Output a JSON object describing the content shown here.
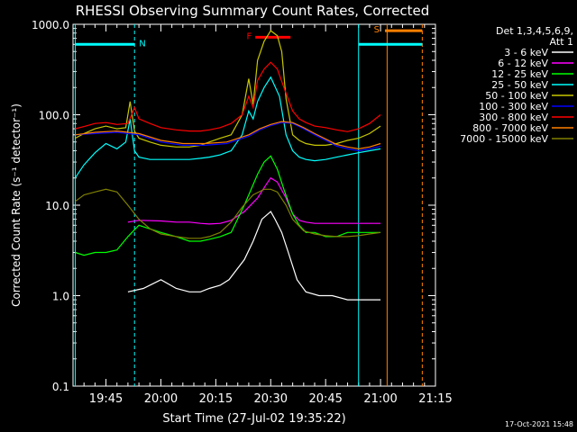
{
  "chart_data": {
    "type": "line",
    "title": "RHESSI Observing Summary Count Rates, Corrected",
    "xlabel": "Start Time (27-Jul-02 19:35:22)",
    "ylabel": "Corrected Count Rate (s⁻¹ detector⁻¹)",
    "yscale": "log",
    "ylim": [
      0.1,
      1000
    ],
    "xlim_minutes": [
      19.6,
      21.25
    ],
    "x_ticks": [
      "19:45",
      "20:00",
      "20:15",
      "20:30",
      "20:45",
      "21:00",
      "21:15"
    ],
    "x_tick_minutes": [
      19.75,
      20.0,
      20.25,
      20.5,
      20.75,
      21.0,
      21.25
    ],
    "y_ticks": [
      "0.1",
      "1.0",
      "10.0",
      "100.0",
      "1000.0"
    ],
    "y_tick_values": [
      0.1,
      1,
      10,
      100,
      1000
    ],
    "legend": {
      "position": "top-right",
      "header": [
        "Det 1,3,4,5,6,9,",
        "Att 1"
      ]
    },
    "timestamp": "17-Oct-2021 15:48",
    "annotations": [
      {
        "label": "N",
        "color": "#00ffff"
      },
      {
        "label": "F",
        "color": "#ff0000"
      },
      {
        "label": "S",
        "color": "#ff8000"
      }
    ],
    "series": [
      {
        "name": "3 - 6 keV",
        "color": "#ffffff",
        "x": [
          19.85,
          19.92,
          20.0,
          20.07,
          20.13,
          20.18,
          20.22,
          20.27,
          20.31,
          20.38,
          20.42,
          20.46,
          20.5,
          20.52,
          20.55,
          20.58,
          20.62,
          20.66,
          20.72,
          20.78,
          20.85,
          20.92,
          21.0
        ],
        "y": [
          1.1,
          1.2,
          1.5,
          1.2,
          1.1,
          1.1,
          1.2,
          1.3,
          1.5,
          2.5,
          4.0,
          7.0,
          8.5,
          7.0,
          5.0,
          3.0,
          1.5,
          1.1,
          1.0,
          1.0,
          0.9,
          0.9,
          0.9
        ]
      },
      {
        "name": "6 - 12 keV",
        "color": "#ff00ff",
        "x": [
          19.85,
          19.9,
          20.0,
          20.07,
          20.13,
          20.18,
          20.22,
          20.27,
          20.32,
          20.38,
          20.44,
          20.48,
          20.5,
          20.53,
          20.57,
          20.6,
          20.63,
          20.66,
          20.7,
          20.75,
          20.8,
          20.85,
          20.9,
          20.95,
          21.0
        ],
        "y": [
          6.5,
          6.8,
          6.7,
          6.5,
          6.5,
          6.3,
          6.2,
          6.3,
          6.8,
          8.5,
          12,
          17,
          20,
          18,
          12,
          8.0,
          6.8,
          6.5,
          6.3,
          6.3,
          6.3,
          6.3,
          6.3,
          6.3,
          6.3
        ]
      },
      {
        "name": "12 - 25 keV",
        "color": "#00ff00",
        "x": [
          19.61,
          19.65,
          19.7,
          19.75,
          19.8,
          19.85,
          19.9,
          20.0,
          20.07,
          20.13,
          20.18,
          20.22,
          20.27,
          20.32,
          20.38,
          20.44,
          20.47,
          20.5,
          20.53,
          20.56,
          20.6,
          20.63,
          20.66,
          20.7,
          20.75,
          20.8,
          20.85,
          20.9,
          20.95,
          21.0
        ],
        "y": [
          3.0,
          2.8,
          3.0,
          3.0,
          3.2,
          4.5,
          6.0,
          5.0,
          4.5,
          4.0,
          4.0,
          4.2,
          4.5,
          5.0,
          10,
          22,
          30,
          35,
          25,
          15,
          8.0,
          6.0,
          5.0,
          5.0,
          4.5,
          4.5,
          5.0,
          5.0,
          5.0,
          5.0
        ]
      },
      {
        "name": "25 - 50 keV",
        "color": "#00ffff",
        "x": [
          19.61,
          19.65,
          19.7,
          19.75,
          19.8,
          19.84,
          19.86,
          19.88,
          19.9,
          19.95,
          20.0,
          20.07,
          20.13,
          20.18,
          20.22,
          20.27,
          20.32,
          20.37,
          20.4,
          20.42,
          20.44,
          20.47,
          20.5,
          20.54,
          20.57,
          20.6,
          20.63,
          20.66,
          20.7,
          20.75,
          20.8,
          20.85,
          20.9,
          20.95,
          21.0
        ],
        "y": [
          20,
          28,
          38,
          48,
          42,
          50,
          90,
          40,
          34,
          32,
          32,
          32,
          32,
          33,
          34,
          36,
          40,
          60,
          110,
          90,
          140,
          200,
          260,
          160,
          60,
          40,
          34,
          32,
          31,
          32,
          34,
          36,
          38,
          40,
          42
        ]
      },
      {
        "name": "50 - 100 keV",
        "color": "#c8c800",
        "x": [
          19.61,
          19.65,
          19.7,
          19.75,
          19.8,
          19.84,
          19.86,
          19.88,
          19.9,
          19.95,
          20.0,
          20.07,
          20.13,
          20.18,
          20.22,
          20.27,
          20.32,
          20.37,
          20.4,
          20.42,
          20.44,
          20.47,
          20.5,
          20.53,
          20.55,
          20.57,
          20.6,
          20.63,
          20.66,
          20.7,
          20.75,
          20.8,
          20.85,
          20.9,
          20.95,
          21.0
        ],
        "y": [
          55,
          62,
          70,
          75,
          70,
          72,
          140,
          66,
          55,
          50,
          46,
          44,
          44,
          46,
          50,
          55,
          60,
          100,
          250,
          130,
          400,
          650,
          850,
          750,
          500,
          150,
          60,
          52,
          48,
          46,
          46,
          48,
          52,
          55,
          62,
          75
        ]
      },
      {
        "name": "100 - 300 keV",
        "color": "#0000ff",
        "x": [
          19.61,
          19.7,
          19.8,
          19.9,
          20.0,
          20.1,
          20.2,
          20.3,
          20.4,
          20.45,
          20.5,
          20.55,
          20.6,
          20.65,
          20.7,
          20.75,
          20.8,
          20.85,
          20.9,
          20.95,
          21.0
        ],
        "y": [
          60,
          62,
          64,
          60,
          50,
          46,
          46,
          48,
          58,
          68,
          76,
          82,
          80,
          70,
          60,
          52,
          45,
          42,
          40,
          42,
          45
        ]
      },
      {
        "name": "300 - 800 keV",
        "color": "#ff0000",
        "x": [
          19.61,
          19.65,
          19.7,
          19.75,
          19.8,
          19.85,
          19.88,
          19.9,
          19.95,
          20.0,
          20.07,
          20.13,
          20.18,
          20.22,
          20.27,
          20.32,
          20.37,
          20.4,
          20.42,
          20.44,
          20.47,
          20.5,
          20.53,
          20.56,
          20.6,
          20.63,
          20.66,
          20.7,
          20.75,
          20.8,
          20.85,
          20.9,
          20.95,
          21.0
        ],
        "y": [
          70,
          74,
          80,
          82,
          78,
          80,
          120,
          90,
          80,
          72,
          68,
          66,
          66,
          68,
          72,
          80,
          100,
          160,
          120,
          240,
          320,
          380,
          320,
          200,
          110,
          90,
          82,
          75,
          72,
          68,
          65,
          70,
          80,
          100
        ]
      },
      {
        "name": "800 - 7000 keV",
        "color": "#ff8000",
        "x": [
          19.61,
          19.7,
          19.8,
          19.9,
          20.0,
          20.1,
          20.2,
          20.3,
          20.4,
          20.45,
          20.5,
          20.55,
          20.6,
          20.65,
          20.7,
          20.75,
          20.8,
          20.85,
          20.9,
          20.95,
          21.0
        ],
        "y": [
          60,
          64,
          66,
          62,
          52,
          48,
          48,
          50,
          60,
          70,
          78,
          84,
          82,
          72,
          62,
          54,
          47,
          44,
          42,
          44,
          48
        ]
      },
      {
        "name": "7000 - 15000 keV",
        "color": "#808000",
        "x": [
          19.61,
          19.65,
          19.7,
          19.75,
          19.8,
          19.85,
          19.9,
          19.95,
          20.0,
          20.07,
          20.13,
          20.18,
          20.22,
          20.27,
          20.32,
          20.37,
          20.42,
          20.47,
          20.5,
          20.53,
          20.57,
          20.6,
          20.65,
          20.7,
          20.75,
          20.8,
          20.85,
          20.9,
          20.95,
          21.0
        ],
        "y": [
          11,
          13,
          14,
          15,
          14,
          10,
          7.0,
          5.5,
          4.8,
          4.5,
          4.3,
          4.3,
          4.5,
          5.0,
          6.5,
          9.5,
          13,
          15,
          15,
          14,
          10,
          7.0,
          5.2,
          4.8,
          4.6,
          4.5,
          4.5,
          4.6,
          4.8,
          5.0
        ]
      }
    ],
    "intervals": [
      {
        "label": "N",
        "color": "#00ffff",
        "x_start": 19.61,
        "x_end": 19.88,
        "level": 600
      },
      {
        "label": "F",
        "color": "#ff0000",
        "x_start": 20.43,
        "x_end": 20.59,
        "level": 720
      },
      {
        "label": "S",
        "color": "#ff8000",
        "x_start": 21.02,
        "x_end": 21.19,
        "level": 850
      },
      {
        "label": "",
        "color": "#00ffff",
        "x_start": 20.9,
        "x_end": 21.19,
        "level": 600
      }
    ],
    "vlines": [
      {
        "x": 19.61,
        "color": "#00ffff",
        "style": "solid"
      },
      {
        "x": 19.88,
        "color": "#00ffff",
        "style": "dashed"
      },
      {
        "x": 20.9,
        "color": "#00ffff",
        "style": "solid"
      },
      {
        "x": 21.03,
        "color": "#ff8000",
        "style": "solid"
      },
      {
        "x": 21.19,
        "color": "#ff8000",
        "style": "dashed"
      }
    ]
  }
}
